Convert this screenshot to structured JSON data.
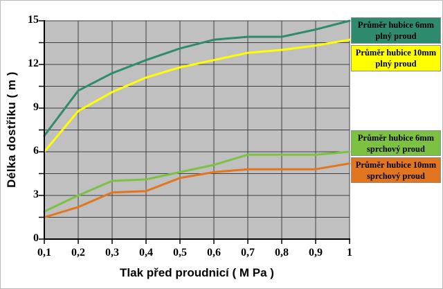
{
  "chart_data": {
    "type": "line",
    "title": "",
    "xlabel": "Tlak před proudnicí  ( M Pa )",
    "ylabel": "Délka dostřiku ( m )",
    "x": [
      0.1,
      0.2,
      0.3,
      0.4,
      0.5,
      0.6,
      0.7,
      0.8,
      0.9,
      1.0
    ],
    "x_tick_labels": [
      "0,1",
      "0,2",
      "0,3",
      "0,4",
      "0,5",
      "0,6",
      "0,7",
      "0,8",
      "0,9",
      "1"
    ],
    "y_tick_labels": [
      "0",
      "3",
      "6",
      "9",
      "12",
      "15"
    ],
    "xlim": [
      0.1,
      1.0
    ],
    "ylim": [
      0,
      15
    ],
    "y_major_step": 3,
    "y_gridline_step": 1.5,
    "x_gridline_step": 0.1,
    "grid": true,
    "legend_position": "right",
    "plot_bg_color": "#c0c0c0",
    "gridline_color": "#3f3f3f",
    "axis_color": "#000000",
    "series": [
      {
        "name": "Průměr hubice 6mm plný proud",
        "color": "#2e8b70",
        "values": [
          7.1,
          10.2,
          11.4,
          12.3,
          13.1,
          13.7,
          13.9,
          13.9,
          14.4,
          15.0
        ]
      },
      {
        "name": "Průměr hubice 10mm plný proud",
        "color": "#ffff00",
        "values": [
          6.0,
          8.8,
          10.1,
          11.1,
          11.8,
          12.3,
          12.8,
          13.0,
          13.3,
          13.7
        ]
      },
      {
        "name": "Průměr hubice 6mm sprchový proud",
        "color": "#7cc142",
        "values": [
          1.9,
          3.0,
          4.0,
          4.1,
          4.6,
          5.1,
          5.8,
          5.8,
          5.8,
          6.0
        ]
      },
      {
        "name": "Průměr hubice 10mm sprchový proud",
        "color": "#e2751f",
        "values": [
          1.5,
          2.2,
          3.2,
          3.3,
          4.2,
          4.6,
          4.8,
          4.8,
          4.8,
          5.2
        ]
      }
    ]
  },
  "axes": {
    "x_title": "Tlak před proudnicí  ( M Pa )",
    "y_title": "Délka dostřiku ( m )"
  },
  "legend": {
    "items": [
      {
        "line1": "Průměr hubice 6mm",
        "line2": "plný proud",
        "color": "#2e8b70",
        "text_color": "#000000"
      },
      {
        "line1": "Průměr hubice 10mm",
        "line2": "plný proud",
        "color": "#ffff00",
        "text_color": "#000000"
      },
      {
        "line1": "Průměr hubice 6mm",
        "line2": "sprchový proud",
        "color": "#7cc142",
        "text_color": "#000000"
      },
      {
        "line1": "Průměr hubice 10mm",
        "line2": "sprchový proud",
        "color": "#e2751f",
        "text_color": "#000000"
      }
    ]
  }
}
